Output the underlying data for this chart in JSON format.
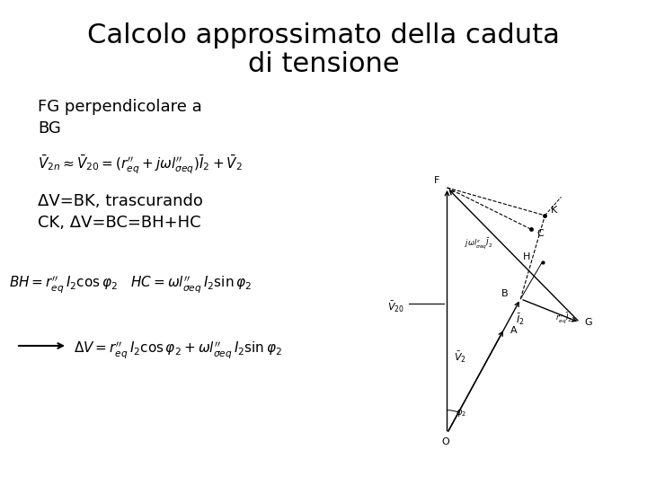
{
  "title_line1": "Calcolo approssimato della caduta",
  "title_line2": "di tensione",
  "title_fontsize": 22,
  "title_fontweight": "normal",
  "bg_color": "#ffffff",
  "text_color": "#000000",
  "text1": "FG perpendicolare a\nBG",
  "text1_fontsize": 13,
  "delta_v_text": "ΔV=BK, trascurando\nCK, ΔV=BC=BH+HC",
  "delta_v_fontsize": 13,
  "formula_fontsize": 11,
  "arrow_fontsize": 11
}
